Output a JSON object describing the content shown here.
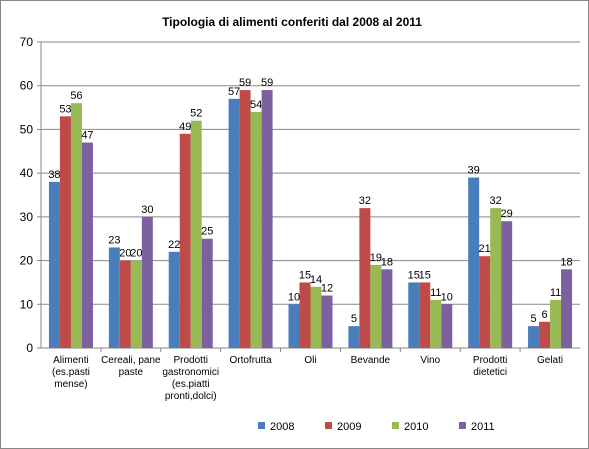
{
  "chart_data": {
    "type": "bar",
    "title": "Tipologia di alimenti conferiti dal 2008 al 2011",
    "xlabel": "",
    "ylabel": "",
    "ylim": [
      0,
      70
    ],
    "yticks": [
      0,
      10,
      20,
      30,
      40,
      50,
      60,
      70
    ],
    "grid": true,
    "legend_position": "bottom",
    "categories": [
      [
        "Alimenti",
        "(es.pasti",
        "mense)"
      ],
      [
        "Cereali, pane",
        "paste"
      ],
      [
        "Prodotti",
        "gastronomici",
        "(es.piatti",
        "pronti,dolci)"
      ],
      [
        "Ortofrutta"
      ],
      [
        "Oli"
      ],
      [
        "Bevande"
      ],
      [
        "Vino"
      ],
      [
        "Prodotti",
        "dietetici"
      ],
      [
        "Gelati"
      ]
    ],
    "series": [
      {
        "name": "2008",
        "color": "#4a7ebb",
        "values": [
          38,
          23,
          22,
          57,
          10,
          5,
          15,
          39,
          5
        ]
      },
      {
        "name": "2009",
        "color": "#be4b48",
        "values": [
          53,
          20,
          49,
          59,
          15,
          32,
          15,
          21,
          6
        ]
      },
      {
        "name": "2010",
        "color": "#98b954",
        "values": [
          56,
          20,
          52,
          54,
          14,
          19,
          11,
          32,
          11
        ]
      },
      {
        "name": "2011",
        "color": "#7d60a0",
        "values": [
          47,
          30,
          25,
          59,
          12,
          18,
          10,
          29,
          18
        ]
      }
    ]
  }
}
